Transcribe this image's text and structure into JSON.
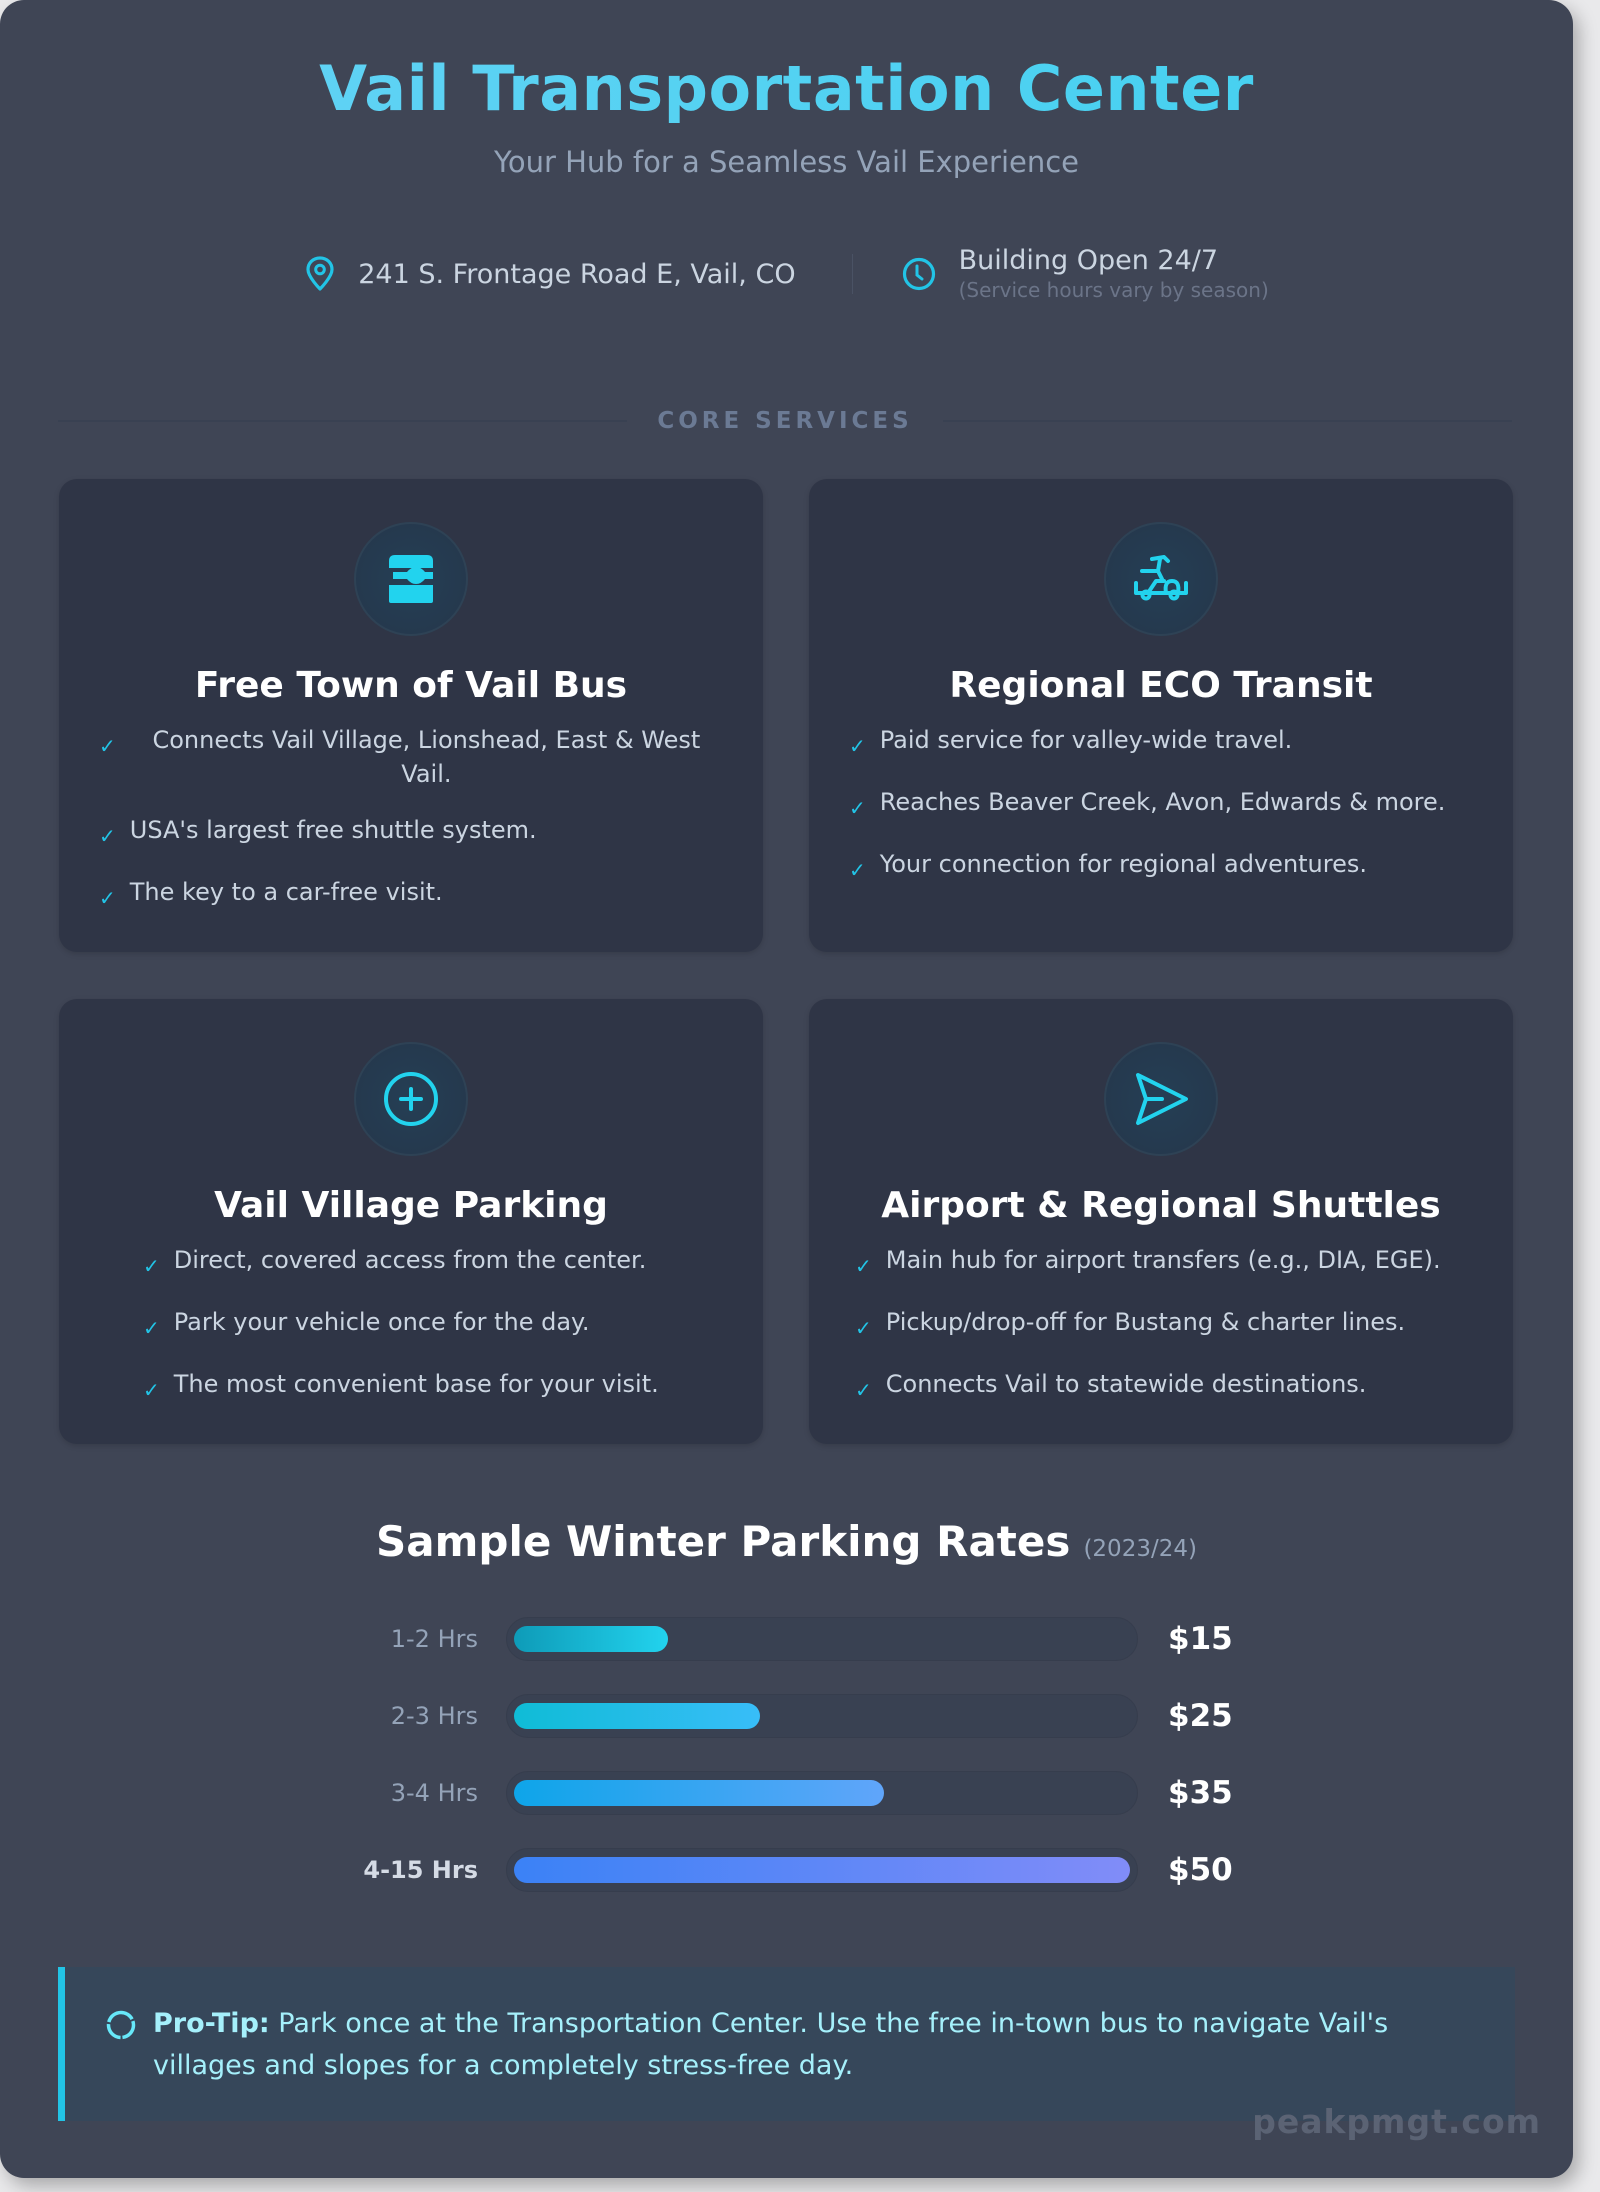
{
  "header": {
    "title": "Vail Transportation Center",
    "subtitle": "Your Hub for a Seamless Vail Experience",
    "address": "241 S. Frontage Road E, Vail, CO",
    "hours": "Building Open 24/7",
    "hours_note": "(Service hours vary by season)"
  },
  "section_label": "CORE SERVICES",
  "services": [
    {
      "title": "Free Town of Vail Bus",
      "icon": "bus-icon",
      "items": [
        "Connects Vail Village, Lionshead, East & West Vail.",
        "USA's largest free shuttle system.",
        "The key to a car-free visit."
      ]
    },
    {
      "title": "Regional ECO Transit",
      "icon": "transit-vehicle-icon",
      "items": [
        "Paid service for valley-wide travel.",
        "Reaches Beaver Creek, Avon, Edwards & more.",
        "Your connection for regional adventures."
      ]
    },
    {
      "title": "Vail Village Parking",
      "icon": "plus-circle-icon",
      "items": [
        "Direct, covered access from the center.",
        "Park your vehicle once for the day.",
        "The most convenient base for your visit."
      ]
    },
    {
      "title": "Airport & Regional Shuttles",
      "icon": "paper-plane-icon",
      "items": [
        "Main hub for airport transfers (e.g., DIA, EGE).",
        "Pickup/drop-off for Bustang & charter lines.",
        "Connects Vail to statewide destinations."
      ]
    }
  ],
  "check_glyph": "✓",
  "rates": {
    "title": "Sample Winter Parking Rates",
    "season": "(2023/24)",
    "rows": [
      {
        "label": "1-2 Hrs",
        "price": "$15",
        "width_pct": 25,
        "gradient": [
          "#0e9bb8",
          "#22d3ee"
        ]
      },
      {
        "label": "2-3 Hrs",
        "price": "$25",
        "width_pct": 40,
        "gradient": [
          "#0fbcd6",
          "#38bdf8"
        ]
      },
      {
        "label": "3-4 Hrs",
        "price": "$35",
        "width_pct": 60,
        "gradient": [
          "#0ea5e9",
          "#60a5fa"
        ]
      },
      {
        "label": "4-15 Hrs",
        "price": "$50",
        "width_pct": 100,
        "gradient": [
          "#3b82f6",
          "#818cf8"
        ]
      }
    ]
  },
  "chart_data": {
    "type": "bar",
    "title": "Sample Winter Parking Rates (2023/24)",
    "orientation": "horizontal",
    "categories": [
      "1-2 Hrs",
      "2-3 Hrs",
      "3-4 Hrs",
      "4-15 Hrs"
    ],
    "values": [
      15,
      25,
      35,
      50
    ],
    "value_labels": [
      "$15",
      "$25",
      "$35",
      "$50"
    ],
    "xlabel": "",
    "ylabel": "",
    "grid": false
  },
  "protip": {
    "label": "Pro-Tip:",
    "text": " Park once at the Transportation Center. Use the free in-town bus to navigate Vail's villages and slopes for a completely stress-free day."
  },
  "watermark": "peakpmgt.com",
  "colors": {
    "accent": "#22c4e6",
    "background": "#3f4555",
    "card": "#2f3546"
  }
}
